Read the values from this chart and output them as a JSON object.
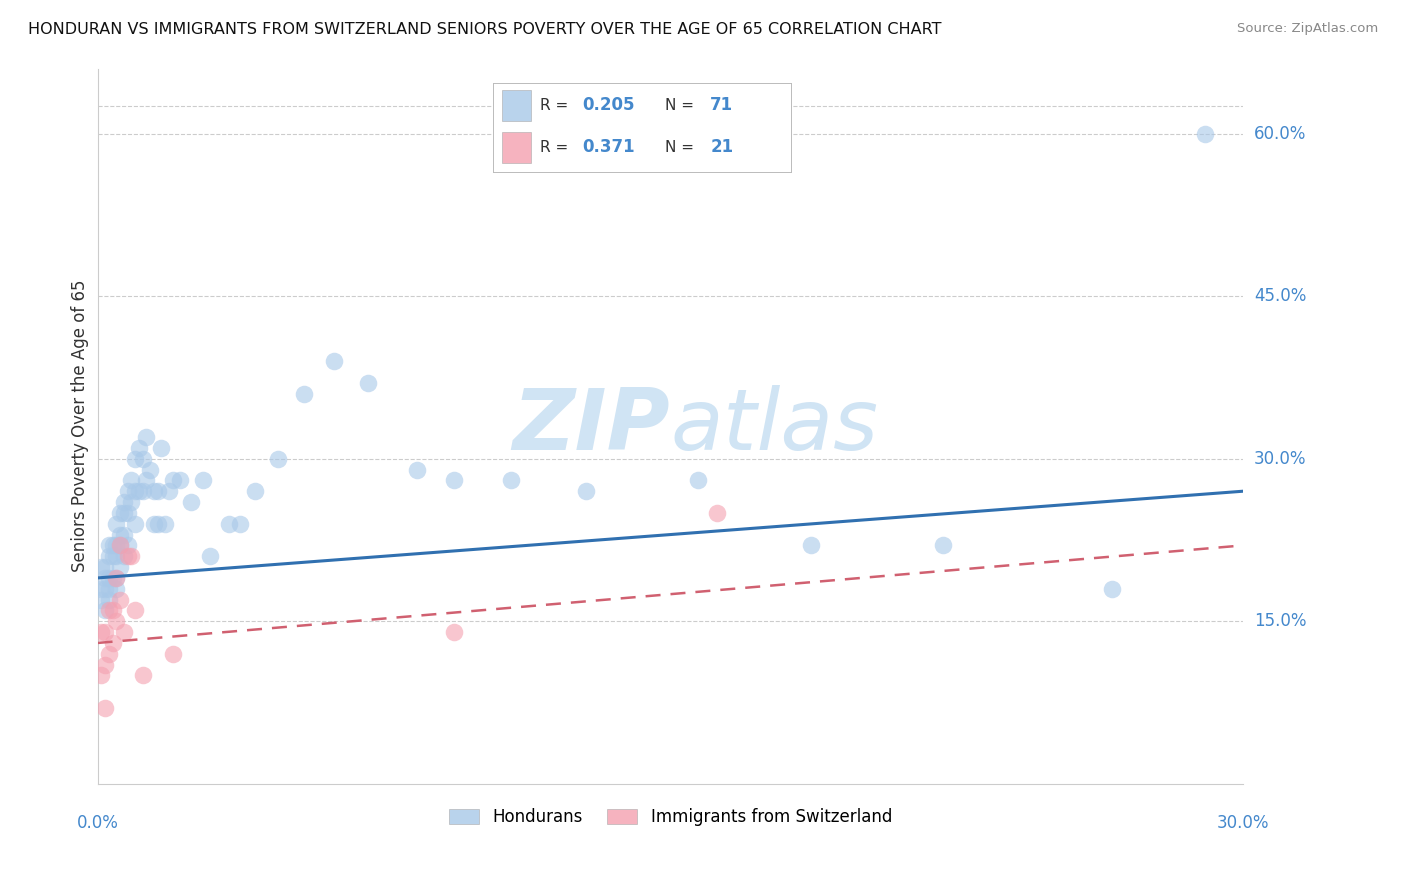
{
  "title": "HONDURAN VS IMMIGRANTS FROM SWITZERLAND SENIORS POVERTY OVER THE AGE OF 65 CORRELATION CHART",
  "source": "Source: ZipAtlas.com",
  "ylabel": "Seniors Poverty Over the Age of 65",
  "right_yticks": [
    "60.0%",
    "45.0%",
    "30.0%",
    "15.0%"
  ],
  "right_ytick_vals": [
    0.6,
    0.45,
    0.3,
    0.15
  ],
  "x_bottom_left": "0.0%",
  "x_bottom_right": "30.0%",
  "legend_blue_r": "0.205",
  "legend_blue_n": "71",
  "legend_pink_r": "0.371",
  "legend_pink_n": "21",
  "blue_color": "#a8c8e8",
  "pink_color": "#f4a0b0",
  "blue_line_color": "#3070b0",
  "pink_line_color": "#d06070",
  "axis_label_color": "#4488cc",
  "text_color": "#333333",
  "watermark_color": "#d0e4f4",
  "xlim": [
    0.0,
    0.305
  ],
  "ylim": [
    0.0,
    0.66
  ],
  "blue_scatter_x": [
    0.001,
    0.001,
    0.001,
    0.002,
    0.002,
    0.002,
    0.002,
    0.003,
    0.003,
    0.003,
    0.003,
    0.003,
    0.004,
    0.004,
    0.004,
    0.005,
    0.005,
    0.005,
    0.005,
    0.005,
    0.006,
    0.006,
    0.006,
    0.006,
    0.007,
    0.007,
    0.007,
    0.007,
    0.008,
    0.008,
    0.008,
    0.009,
    0.009,
    0.01,
    0.01,
    0.01,
    0.011,
    0.011,
    0.012,
    0.012,
    0.013,
    0.013,
    0.014,
    0.015,
    0.015,
    0.016,
    0.016,
    0.017,
    0.018,
    0.019,
    0.02,
    0.022,
    0.025,
    0.028,
    0.03,
    0.035,
    0.038,
    0.042,
    0.048,
    0.055,
    0.063,
    0.072,
    0.085,
    0.095,
    0.11,
    0.13,
    0.16,
    0.19,
    0.225,
    0.27,
    0.295
  ],
  "blue_scatter_y": [
    0.2,
    0.18,
    0.17,
    0.2,
    0.19,
    0.18,
    0.16,
    0.22,
    0.21,
    0.19,
    0.18,
    0.17,
    0.22,
    0.21,
    0.19,
    0.24,
    0.22,
    0.21,
    0.19,
    0.18,
    0.25,
    0.23,
    0.22,
    0.2,
    0.26,
    0.25,
    0.23,
    0.21,
    0.27,
    0.25,
    0.22,
    0.28,
    0.26,
    0.3,
    0.27,
    0.24,
    0.31,
    0.27,
    0.3,
    0.27,
    0.32,
    0.28,
    0.29,
    0.27,
    0.24,
    0.27,
    0.24,
    0.31,
    0.24,
    0.27,
    0.28,
    0.28,
    0.26,
    0.28,
    0.21,
    0.24,
    0.24,
    0.27,
    0.3,
    0.36,
    0.39,
    0.37,
    0.29,
    0.28,
    0.28,
    0.27,
    0.28,
    0.22,
    0.22,
    0.18,
    0.6
  ],
  "pink_scatter_x": [
    0.001,
    0.001,
    0.002,
    0.002,
    0.002,
    0.003,
    0.003,
    0.004,
    0.004,
    0.005,
    0.005,
    0.006,
    0.006,
    0.007,
    0.008,
    0.009,
    0.01,
    0.012,
    0.02,
    0.095,
    0.165
  ],
  "pink_scatter_y": [
    0.14,
    0.1,
    0.14,
    0.11,
    0.07,
    0.16,
    0.12,
    0.16,
    0.13,
    0.19,
    0.15,
    0.22,
    0.17,
    0.14,
    0.21,
    0.21,
    0.16,
    0.1,
    0.12,
    0.14,
    0.25
  ],
  "blue_line_x": [
    0.0,
    0.305
  ],
  "blue_line_y": [
    0.19,
    0.27
  ],
  "pink_line_x": [
    0.0,
    0.305
  ],
  "pink_line_y": [
    0.13,
    0.22
  ],
  "grid_color": "#cccccc",
  "spine_color": "#cccccc"
}
